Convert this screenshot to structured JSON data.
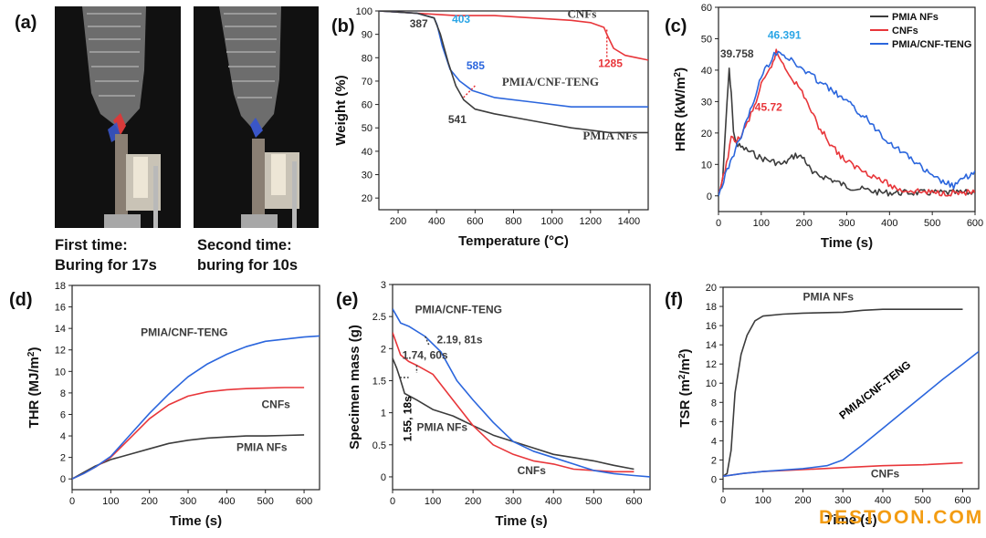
{
  "panel_labels": {
    "a": "(a)",
    "b": "(b)",
    "c": "(c)",
    "d": "(d)",
    "e": "(e)",
    "f": "(f)"
  },
  "photos": [
    {
      "caption_line1": "First time:",
      "caption_line2": "Buring for 17s"
    },
    {
      "caption_line1": "Second time:",
      "caption_line2": "buring for 10s"
    }
  ],
  "watermark": "DESTOON.COM",
  "colors": {
    "black": "#3c3c3c",
    "red": "#e8363a",
    "blue": "#2b66dd",
    "lightblue": "#2aa5e6"
  },
  "chart_data": [
    {
      "id": "b",
      "type": "line",
      "xlabel": "Temperature (°C)",
      "ylabel": "Weight (%)",
      "xlim": [
        100,
        1500
      ],
      "ylim": [
        15,
        100
      ],
      "xticks": [
        200,
        400,
        600,
        800,
        1000,
        1200,
        1400
      ],
      "yticks": [
        20,
        30,
        40,
        50,
        60,
        70,
        80,
        90,
        100
      ],
      "series": [
        {
          "name": "CNFs",
          "color": "red",
          "x": [
            100,
            300,
            500,
            700,
            900,
            1100,
            1200,
            1270,
            1285,
            1320,
            1380,
            1440,
            1500
          ],
          "y": [
            100,
            99,
            98,
            98,
            97,
            96,
            95,
            93,
            90,
            84,
            81,
            80,
            79
          ]
        },
        {
          "name": "PMIA/CNF-TENG",
          "color": "blue",
          "x": [
            100,
            300,
            387,
            403,
            430,
            470,
            520,
            585,
            700,
            900,
            1100,
            1300,
            1500
          ],
          "y": [
            100,
            99,
            97,
            94,
            85,
            75,
            70,
            66,
            63,
            61,
            59,
            59,
            59
          ]
        },
        {
          "name": "PMIA NFs",
          "color": "black",
          "x": [
            100,
            300,
            387,
            420,
            460,
            500,
            541,
            600,
            700,
            900,
            1100,
            1300,
            1500
          ],
          "y": [
            100,
            99,
            97,
            90,
            78,
            68,
            62,
            58,
            56,
            53,
            50,
            48,
            48
          ]
        }
      ],
      "annotations": [
        {
          "text": "387",
          "color": "black"
        },
        {
          "text": "403",
          "color": "lightblue"
        },
        {
          "text": "585",
          "color": "blue"
        },
        {
          "text": "541",
          "color": "black"
        },
        {
          "text": "1285",
          "color": "red"
        },
        {
          "text": "CNFs",
          "color": "black"
        },
        {
          "text": "PMIA/CNF-TENG",
          "color": "black"
        },
        {
          "text": "PMIA NFs",
          "color": "black"
        }
      ]
    },
    {
      "id": "c",
      "type": "line",
      "xlabel": "Time (s)",
      "ylabel": "HRR (kW/m2)",
      "xlim": [
        0,
        600
      ],
      "ylim": [
        -5,
        60
      ],
      "xticks": [
        0,
        100,
        200,
        300,
        400,
        500,
        600
      ],
      "yticks": [
        0,
        10,
        20,
        30,
        40,
        50,
        60
      ],
      "legend": "top-right",
      "series": [
        {
          "name": "PMIA NFs",
          "color": "black",
          "x": [
            0,
            10,
            20,
            25,
            30,
            35,
            45,
            60,
            100,
            150,
            180,
            200,
            220,
            250,
            300,
            340,
            380,
            600
          ],
          "y": [
            0,
            5,
            30,
            39.758,
            33,
            20,
            16,
            15,
            12,
            10,
            13,
            12,
            7,
            6,
            3,
            2,
            1,
            1
          ]
        },
        {
          "name": "CNFs",
          "color": "red",
          "x": [
            0,
            15,
            30,
            50,
            80,
            100,
            120,
            135,
            160,
            200,
            230,
            260,
            290,
            310,
            340,
            380,
            420,
            500,
            600
          ],
          "y": [
            0,
            8,
            18,
            18,
            27,
            35,
            40,
            45.72,
            40,
            32,
            23,
            17,
            12,
            10,
            8,
            5,
            2,
            1,
            1
          ]
        },
        {
          "name": "PMIA/CNF-TENG",
          "color": "blue",
          "x": [
            0,
            20,
            40,
            70,
            100,
            130,
            140,
            170,
            200,
            250,
            300,
            350,
            400,
            450,
            500,
            550,
            600
          ],
          "y": [
            0,
            8,
            15,
            25,
            38,
            45,
            46.391,
            43,
            40,
            35,
            30,
            24,
            17,
            12,
            6,
            3,
            8
          ]
        }
      ],
      "annotations": [
        {
          "text": "39.758",
          "color": "black"
        },
        {
          "text": "46.391",
          "color": "lightblue"
        },
        {
          "text": "45.72",
          "color": "red"
        }
      ]
    },
    {
      "id": "d",
      "type": "line",
      "xlabel": "Time (s)",
      "ylabel": "THR (MJ/m2)",
      "xlim": [
        0,
        640
      ],
      "ylim": [
        -1,
        18
      ],
      "xticks": [
        0,
        100,
        200,
        300,
        400,
        500,
        600
      ],
      "yticks": [
        0,
        2,
        4,
        6,
        8,
        10,
        12,
        14,
        16,
        18
      ],
      "series": [
        {
          "name": "PMIA NFs",
          "color": "black",
          "x": [
            0,
            30,
            60,
            100,
            150,
            200,
            250,
            300,
            350,
            400,
            450,
            500,
            550,
            600
          ],
          "y": [
            0,
            0.6,
            1.2,
            1.8,
            2.3,
            2.8,
            3.3,
            3.6,
            3.8,
            3.9,
            4.0,
            4.0,
            4.05,
            4.1
          ]
        },
        {
          "name": "CNFs",
          "color": "red",
          "x": [
            0,
            30,
            60,
            100,
            150,
            200,
            250,
            300,
            350,
            400,
            450,
            500,
            550,
            600
          ],
          "y": [
            0,
            0.5,
            1.1,
            2.0,
            3.8,
            5.6,
            6.9,
            7.7,
            8.1,
            8.3,
            8.4,
            8.45,
            8.5,
            8.5
          ]
        },
        {
          "name": "PMIA/CNF-TENG",
          "color": "blue",
          "x": [
            0,
            30,
            60,
            100,
            150,
            200,
            250,
            300,
            350,
            400,
            450,
            500,
            550,
            600,
            640
          ],
          "y": [
            0,
            0.5,
            1.1,
            2.1,
            4.1,
            6.1,
            7.9,
            9.5,
            10.7,
            11.6,
            12.3,
            12.8,
            13.0,
            13.2,
            13.3
          ]
        }
      ],
      "annotations": [
        {
          "text": "PMIA/CNF-TENG",
          "color": "black"
        },
        {
          "text": "CNFs",
          "color": "black"
        },
        {
          "text": "PMIA NFs",
          "color": "black"
        }
      ]
    },
    {
      "id": "e",
      "type": "line",
      "xlabel": "Time (s)",
      "ylabel": "Specimen mass (g)",
      "xlim": [
        0,
        640
      ],
      "ylim": [
        -0.2,
        3.0
      ],
      "xticks": [
        0,
        100,
        200,
        300,
        400,
        500,
        600
      ],
      "yticks": [
        0.0,
        0.5,
        1.0,
        1.5,
        2.0,
        2.5,
        3.0
      ],
      "series": [
        {
          "name": "PMIA NFs",
          "color": "black",
          "x": [
            0,
            10,
            18,
            30,
            60,
            100,
            150,
            200,
            250,
            300,
            350,
            400,
            450,
            500,
            550,
            600
          ],
          "y": [
            1.85,
            1.7,
            1.55,
            1.3,
            1.2,
            1.05,
            0.95,
            0.8,
            0.65,
            0.55,
            0.45,
            0.35,
            0.3,
            0.25,
            0.18,
            0.12
          ]
        },
        {
          "name": "CNFs",
          "color": "red",
          "x": [
            0,
            20,
            40,
            60,
            100,
            150,
            200,
            250,
            300,
            350,
            400,
            450,
            500,
            550,
            600
          ],
          "y": [
            2.25,
            1.9,
            1.8,
            1.74,
            1.6,
            1.2,
            0.8,
            0.5,
            0.35,
            0.25,
            0.2,
            0.12,
            0.1,
            0.08,
            0.08
          ]
        },
        {
          "name": "PMIA/CNF-TENG",
          "color": "blue",
          "x": [
            0,
            20,
            40,
            81,
            120,
            160,
            200,
            250,
            300,
            350,
            400,
            450,
            500,
            550,
            600,
            640
          ],
          "y": [
            2.62,
            2.4,
            2.35,
            2.19,
            1.95,
            1.5,
            1.2,
            0.85,
            0.55,
            0.4,
            0.3,
            0.2,
            0.1,
            0.05,
            0.02,
            0.0
          ]
        }
      ],
      "annotations": [
        {
          "text": "PMIA/CNF-TENG",
          "color": "black"
        },
        {
          "text": "2.19, 81s",
          "color": "black"
        },
        {
          "text": "1.74, 60s",
          "color": "black"
        },
        {
          "text": "1.55, 18s",
          "color": "black"
        },
        {
          "text": "PMIA NFs",
          "color": "black"
        },
        {
          "text": "CNFs",
          "color": "black"
        }
      ]
    },
    {
      "id": "f",
      "type": "line",
      "xlabel": "Time (s)",
      "ylabel": "TSR (m2/m2)",
      "xlim": [
        0,
        640
      ],
      "ylim": [
        -1,
        20
      ],
      "xticks": [
        0,
        100,
        200,
        300,
        400,
        500,
        600
      ],
      "yticks": [
        0,
        2,
        4,
        6,
        8,
        10,
        12,
        14,
        16,
        18,
        20
      ],
      "series": [
        {
          "name": "PMIA NFs",
          "color": "black",
          "x": [
            0,
            10,
            20,
            30,
            45,
            60,
            80,
            100,
            150,
            200,
            300,
            350,
            400,
            500,
            600
          ],
          "y": [
            0.3,
            0.6,
            3,
            9,
            13,
            15,
            16.5,
            17,
            17.2,
            17.3,
            17.4,
            17.6,
            17.7,
            17.7,
            17.7
          ]
        },
        {
          "name": "CNFs",
          "color": "red",
          "x": [
            0,
            50,
            100,
            200,
            300,
            400,
            500,
            600
          ],
          "y": [
            0.3,
            0.6,
            0.8,
            1.0,
            1.2,
            1.4,
            1.5,
            1.7
          ]
        },
        {
          "name": "PMIA/CNF-TENG",
          "color": "blue",
          "x": [
            0,
            50,
            100,
            200,
            260,
            300,
            350,
            400,
            450,
            500,
            550,
            600,
            640
          ],
          "y": [
            0.3,
            0.6,
            0.8,
            1.1,
            1.4,
            2.0,
            3.6,
            5.3,
            7.0,
            8.7,
            10.4,
            12.0,
            13.3
          ]
        }
      ],
      "annotations": [
        {
          "text": "PMIA NFs",
          "color": "black"
        },
        {
          "text": "PMIA/CNF-TENG",
          "color": "black"
        },
        {
          "text": "CNFs",
          "color": "black"
        }
      ]
    }
  ]
}
